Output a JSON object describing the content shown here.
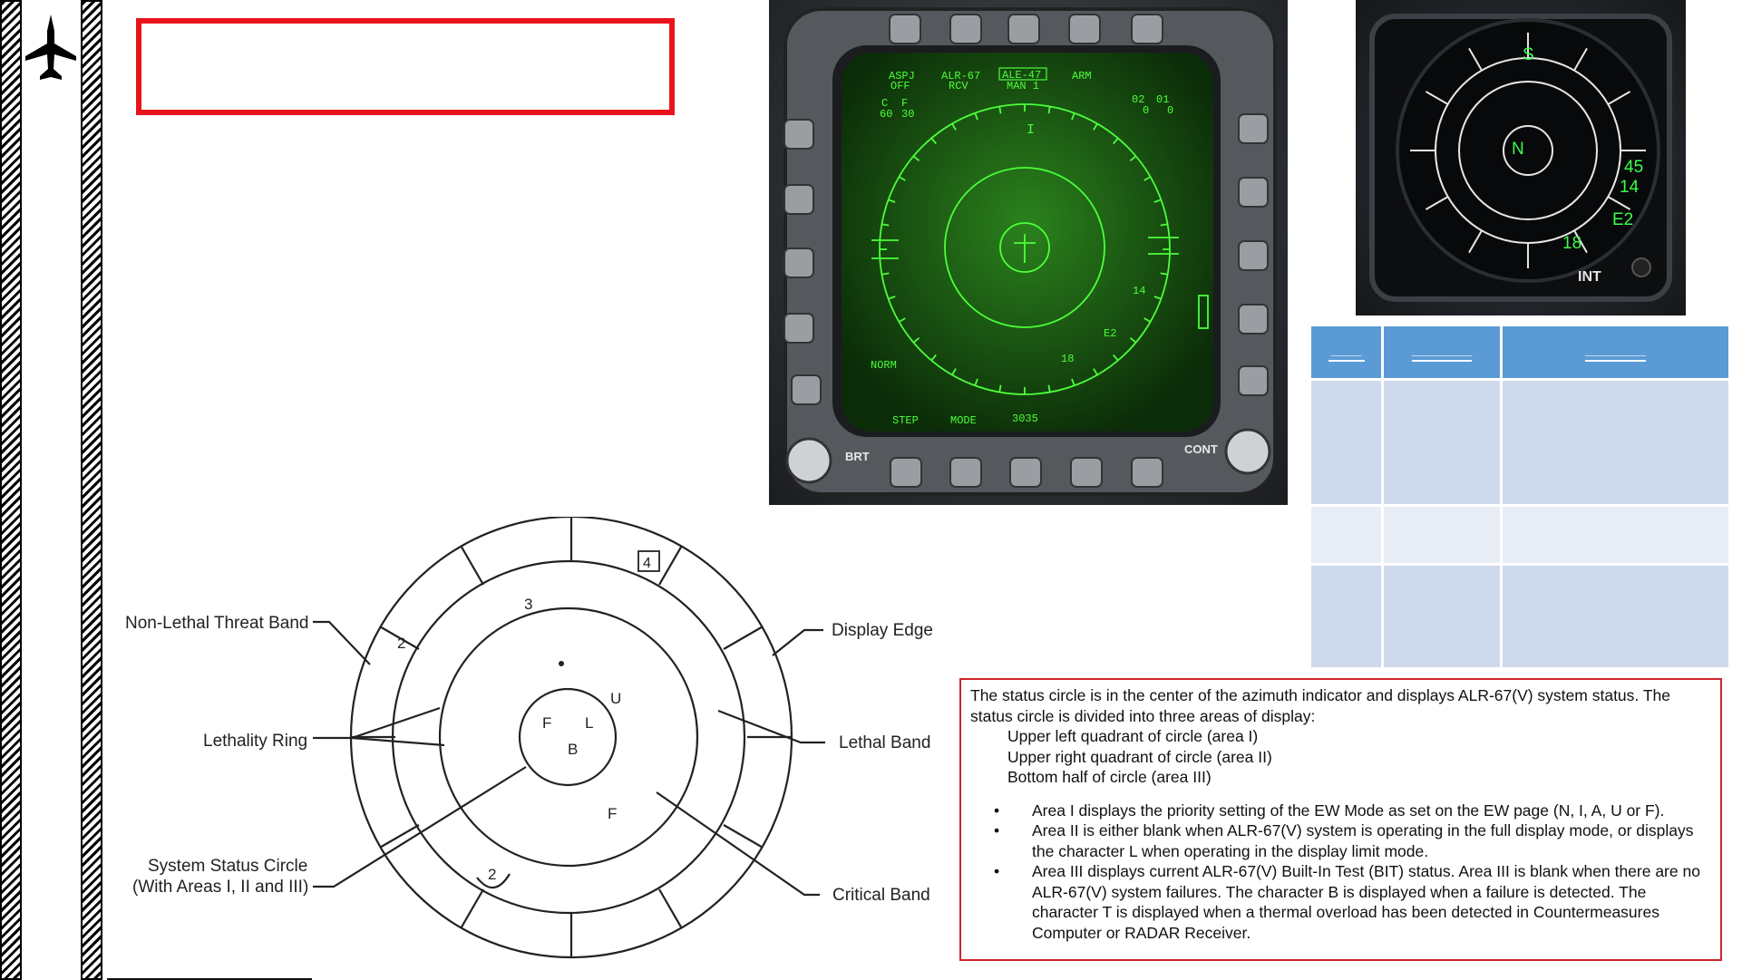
{
  "header": {
    "title": ""
  },
  "mfd": {
    "top_labels": [
      "ASPJ",
      "OFF",
      "ALR-67",
      "RCV",
      "ALE-47",
      "MAN 1",
      "ARM"
    ],
    "left_labels": [
      "C",
      "F",
      "60",
      "30"
    ],
    "right_top": [
      "02",
      "01",
      "0",
      "0"
    ],
    "bottom_labels": [
      "STEP",
      "MODE",
      "3035"
    ],
    "norm_label": "NORM",
    "brt_label": "BRT",
    "cont_label": "CONT",
    "threats": [
      "I",
      "E2",
      "14",
      "18"
    ],
    "colors": {
      "phosphor": "#4cff3a",
      "screen": "#0e3a0a"
    }
  },
  "rwr": {
    "status": "N",
    "top": "S",
    "threats": [
      "45",
      "14",
      "E2",
      "18"
    ],
    "knob_label": "INT"
  },
  "table": {
    "headers": [
      "____",
      "________",
      "________"
    ],
    "rows": [
      [
        "",
        "",
        ""
      ],
      [
        "",
        "",
        ""
      ],
      [
        "",
        "",
        ""
      ]
    ]
  },
  "diagram": {
    "labels": {
      "non_lethal": "Non-Lethal Threat Band",
      "display_edge": "Display Edge",
      "lethality_ring": "Lethality Ring",
      "lethal_band": "Lethal Band",
      "status_circle_1": "System Status Circle",
      "status_circle_2": "(With Areas I, II and III)",
      "critical_band": "Critical Band"
    },
    "symbols": {
      "box4": "4",
      "n2": "2",
      "n3": "3",
      "u": "U",
      "f": "F",
      "l": "L",
      "b": "B",
      "f2": "F",
      "arc2": "2"
    }
  },
  "info": {
    "intro": "The status circle is in the center of the azimuth indicator and displays ALR-67(V) system status. The status circle is divided into three areas of display:",
    "areas": [
      "Upper left quadrant of circle (area I)",
      "Upper right quadrant of circle (area II)",
      "Bottom half of circle (area III)"
    ],
    "bullets": [
      "Area I displays the priority setting of the EW Mode as set on the EW page (N, I, A, U or F).",
      "Area II is either blank when ALR-67(V) system is operating in the full display mode, or displays the character L when operating in the display limit mode.",
      "Area III displays current ALR-67(V) Built-In Test (BIT) status. Area III is blank when there are no ALR-67(V) system failures. The character B is displayed when a failure is detected. The character T is displayed when a thermal overload has been detected in Countermeasures Computer or RADAR Receiver."
    ]
  }
}
